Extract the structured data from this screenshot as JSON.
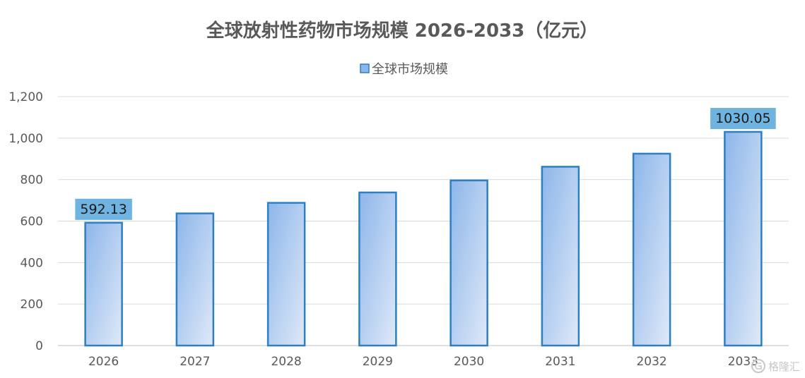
{
  "chart_data": {
    "type": "bar",
    "title": "全球放射性药物市场规模 2026-2033（亿元）",
    "categories": [
      "2026",
      "2027",
      "2028",
      "2029",
      "2030",
      "2031",
      "2032",
      "2033"
    ],
    "series": [
      {
        "name": "全球市场规模",
        "values": [
          592.13,
          637,
          688,
          738,
          796,
          862,
          925,
          1030.05
        ]
      }
    ],
    "data_labels": [
      {
        "index": 0,
        "text": "592.13"
      },
      {
        "index": 7,
        "text": "1030.05"
      }
    ],
    "ylim": [
      0,
      1200
    ],
    "yticks": [
      0,
      200,
      400,
      600,
      800,
      1000,
      1200
    ],
    "ytick_labels": [
      "0",
      "200",
      "400",
      "600",
      "800",
      "1,000",
      "1,200"
    ],
    "xlabel": "",
    "ylabel": "",
    "grid": true,
    "legend_position": "top-center"
  },
  "colors": {
    "bar_top": "#8db6ea",
    "bar_bottom": "#dfe9f8",
    "bar_border": "#2e7fc1",
    "label_bg": "#6fb3e0",
    "grid": "#d9d9d9",
    "axis": "#bfbfbf",
    "text": "#595959"
  },
  "watermark": {
    "icon": "gelonghui-logo-icon",
    "text": "格隆汇"
  }
}
